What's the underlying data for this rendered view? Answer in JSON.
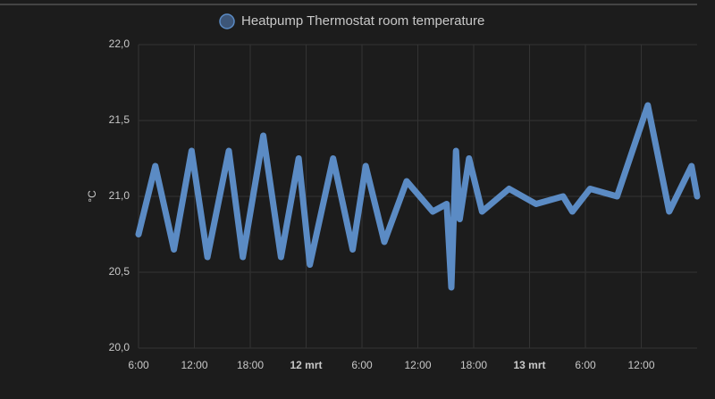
{
  "chart_data": {
    "type": "line",
    "y_label": "°C",
    "x": [
      0,
      1.8,
      3.8,
      5.7,
      7.4,
      9.7,
      11.2,
      13.4,
      15.3,
      17.2,
      18.4,
      20.9,
      23.0,
      24.4,
      26.4,
      28.8,
      31.6,
      33.1,
      33.6,
      34.1,
      34.5,
      35.5,
      36.9,
      39.8,
      42.7,
      45.6,
      46.6,
      48.5,
      51.4,
      54.7,
      57.0,
      59.4,
      60
    ],
    "series": [
      {
        "name": "Heatpump Thermostat room temperature",
        "color": "#5b8bc4",
        "values": [
          20.75,
          21.2,
          20.65,
          21.3,
          20.6,
          21.3,
          20.6,
          21.4,
          20.6,
          21.25,
          20.55,
          21.25,
          20.65,
          21.2,
          20.7,
          21.1,
          20.9,
          20.95,
          20.4,
          21.3,
          20.85,
          21.25,
          20.9,
          21.05,
          20.95,
          21.0,
          20.9,
          21.05,
          21.0,
          21.6,
          20.9,
          21.2,
          21.0
        ]
      }
    ],
    "xlim": [
      0,
      60
    ],
    "xticks": [
      {
        "value": 0,
        "label": "6:00"
      },
      {
        "value": 6,
        "label": "12:00"
      },
      {
        "value": 12,
        "label": "18:00"
      },
      {
        "value": 18,
        "label": "12 mrt"
      },
      {
        "value": 24,
        "label": "6:00"
      },
      {
        "value": 30,
        "label": "12:00"
      },
      {
        "value": 36,
        "label": "18:00"
      },
      {
        "value": 42,
        "label": "13 mrt"
      },
      {
        "value": 48,
        "label": "6:00"
      },
      {
        "value": 54,
        "label": "12:00"
      }
    ],
    "ylim": [
      20,
      22
    ],
    "yticks": [
      {
        "value": 20,
        "label": "20,0"
      },
      {
        "value": 20.5,
        "label": "20,5"
      },
      {
        "value": 21,
        "label": "21,0"
      },
      {
        "value": 21.5,
        "label": "21,5"
      },
      {
        "value": 22,
        "label": "22,0"
      }
    ],
    "grid": true
  }
}
